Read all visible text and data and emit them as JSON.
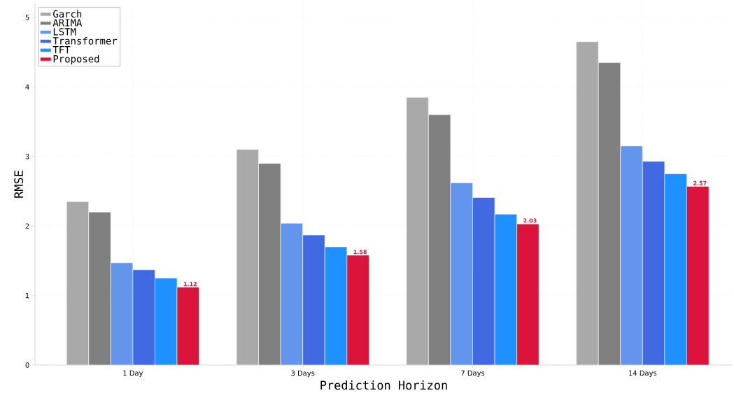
{
  "chart_data": {
    "type": "bar",
    "xlabel": "Prediction Horizon",
    "ylabel": "RMSE",
    "categories": [
      "1 Day",
      "3 Days",
      "7 Days",
      "14 Days"
    ],
    "series": [
      {
        "name": "Garch",
        "color": "#a9a9a9",
        "values": [
          2.35,
          3.1,
          3.85,
          4.65
        ]
      },
      {
        "name": "ARIMA",
        "color": "#808080",
        "values": [
          2.2,
          2.9,
          3.6,
          4.35
        ]
      },
      {
        "name": "LSTM",
        "color": "#6495ed",
        "values": [
          1.47,
          2.04,
          2.62,
          3.15
        ]
      },
      {
        "name": "Transformer",
        "color": "#4169e1",
        "values": [
          1.37,
          1.87,
          2.41,
          2.93
        ]
      },
      {
        "name": "TFT",
        "color": "#1e90ff",
        "values": [
          1.25,
          1.7,
          2.17,
          2.75
        ]
      },
      {
        "name": "Proposed",
        "color": "#dc143c",
        "values": [
          1.12,
          1.58,
          2.03,
          2.57
        ],
        "value_labels": [
          "1.12",
          "1.58",
          "2.03",
          "2.57"
        ]
      }
    ],
    "ylim": [
      0,
      5.2
    ],
    "yticks": [
      0,
      1,
      2,
      3,
      4,
      5
    ],
    "grid": true,
    "legend": "top left"
  }
}
